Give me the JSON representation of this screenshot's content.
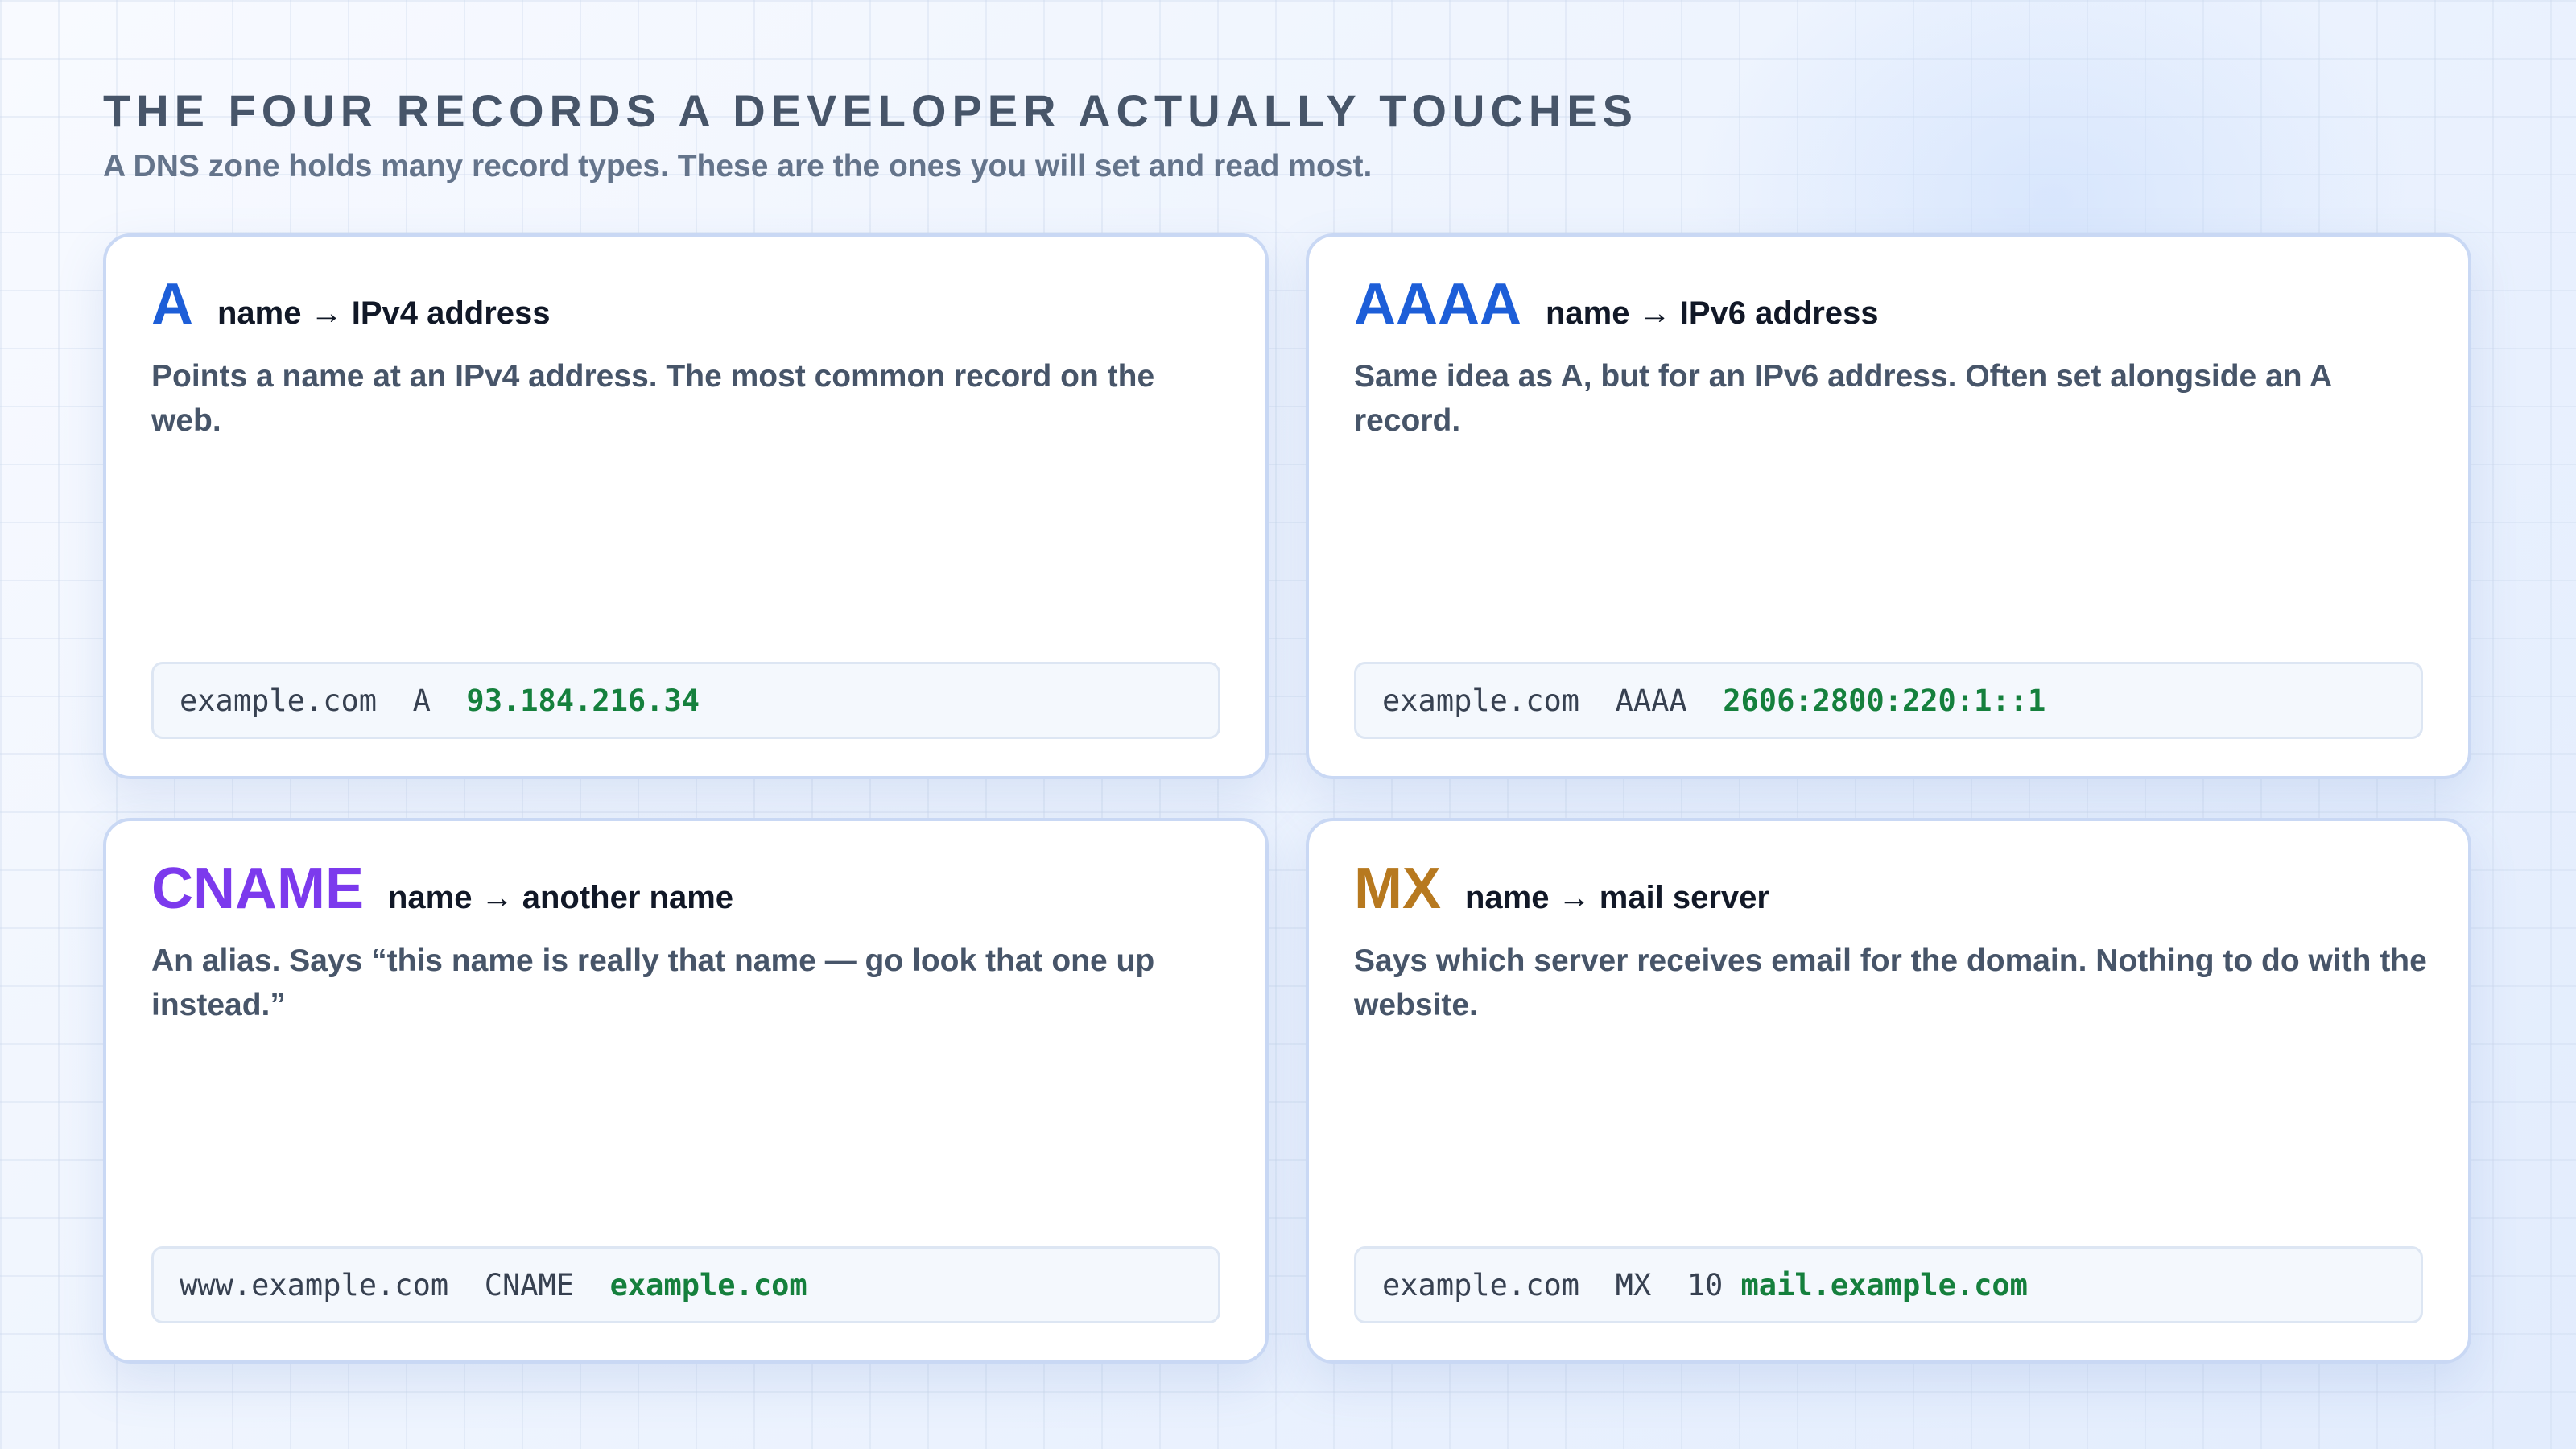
{
  "header": {
    "title": "THE FOUR RECORDS A DEVELOPER ACTUALLY TOUCHES",
    "subtitle": "A DNS zone holds many record types. These are the ones you will set and read most."
  },
  "cards": [
    {
      "type": "A",
      "mapping": "name → IPv4 address",
      "description": "Points a name at an IPv4 address. The most common record on the web.",
      "example_prefix": "example.com  A  ",
      "example_value": "93.184.216.34",
      "color": "#1d5ed8"
    },
    {
      "type": "AAAA",
      "mapping": "name → IPv6 address",
      "description": "Same idea as A, but for an IPv6 address. Often set alongside an A record.",
      "example_prefix": "example.com  AAAA  ",
      "example_value": "2606:2800:220:1::1",
      "color": "#1d5ed8"
    },
    {
      "type": "CNAME",
      "mapping": "name → another name",
      "description": "An alias. Says “this name is really that name — go look that one up instead.”",
      "example_prefix": "www.example.com  CNAME  ",
      "example_value": "example.com",
      "color": "#7c3aed"
    },
    {
      "type": "MX",
      "mapping": "name → mail server",
      "description": "Says which server receives email for the domain. Nothing to do with the website.",
      "example_prefix": "example.com  MX  10 ",
      "example_value": "mail.example.com",
      "color": "#b7791f"
    }
  ],
  "colors": {
    "value_green": "#15803d",
    "card_border": "#c9d8f4"
  }
}
